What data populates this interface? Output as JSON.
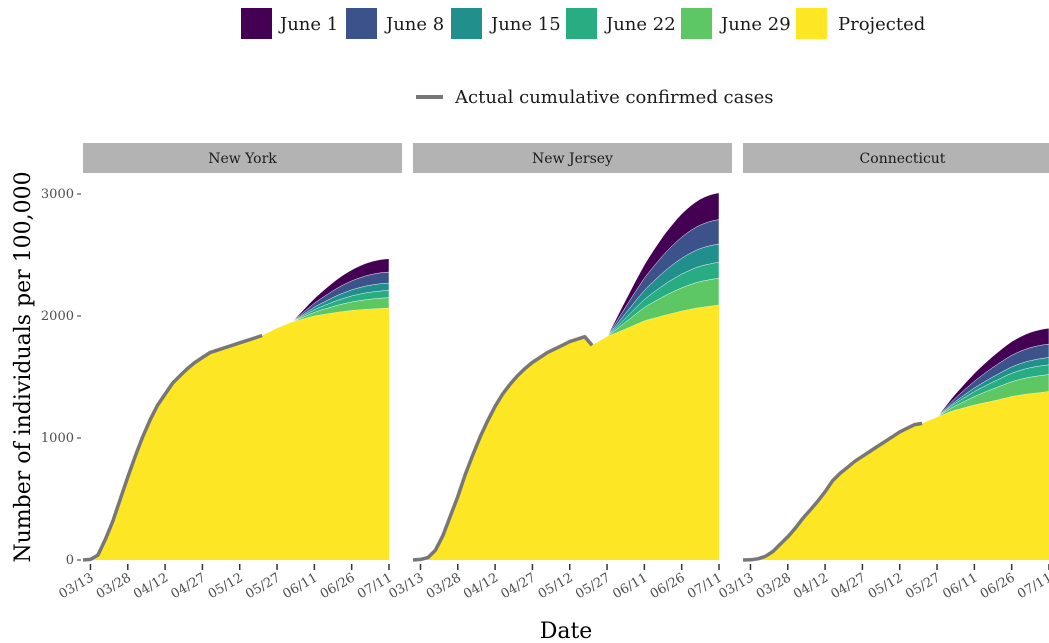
{
  "chart_data": {
    "type": "area",
    "xlabel": "Date",
    "ylabel": "Number of individuals per 100,000",
    "ylim": [
      0,
      3000
    ],
    "yticks": [
      0,
      1000,
      2000,
      3000
    ],
    "ytick_labels": [
      "0",
      "1000",
      "2000",
      "3000"
    ],
    "xlim_days": [
      -3,
      120
    ],
    "xticks": [
      "03/13",
      "03/28",
      "04/12",
      "04/27",
      "05/12",
      "05/27",
      "06/11",
      "06/26",
      "07/11"
    ],
    "legend_position": "top",
    "fill_legend": [
      {
        "name": "June 1",
        "color": "#440154"
      },
      {
        "name": "June 8",
        "color": "#3b528b"
      },
      {
        "name": "June 15",
        "color": "#21908c"
      },
      {
        "name": "June 22",
        "color": "#27ad81"
      },
      {
        "name": "June 29",
        "color": "#5dc863"
      },
      {
        "name": "Projected",
        "color": "#fde725"
      }
    ],
    "line_legend": {
      "name": "Actual cumulative confirmed cases",
      "color": "#777777"
    },
    "panels": [
      {
        "title": "New York",
        "actual": {
          "dates": [
            "03/10",
            "03/13",
            "03/16",
            "03/19",
            "03/22",
            "03/25",
            "03/28",
            "03/31",
            "04/03",
            "04/06",
            "04/09",
            "04/12",
            "04/15",
            "04/18",
            "04/21",
            "04/24",
            "04/27",
            "04/30",
            "05/03",
            "05/06",
            "05/09",
            "05/12",
            "05/15",
            "05/18",
            "05/21"
          ],
          "values": [
            0,
            5,
            40,
            170,
            320,
            500,
            680,
            850,
            1010,
            1150,
            1270,
            1360,
            1450,
            1510,
            1570,
            1620,
            1660,
            1700,
            1720,
            1740,
            1760,
            1780,
            1800,
            1820,
            1840
          ]
        },
        "projected_base": {
          "dates": [
            "05/21",
            "05/27",
            "06/02",
            "06/11",
            "06/20",
            "06/26",
            "07/02",
            "07/11"
          ],
          "values": [
            1840,
            1900,
            1950,
            2000,
            2030,
            2045,
            2055,
            2065
          ]
        },
        "scenario_end_values": {
          "date": "07/11",
          "June 29": 2150,
          "June 22": 2210,
          "June 15": 2270,
          "June 8": 2360,
          "June 1": 2470
        },
        "divergence_date": "06/02"
      },
      {
        "title": "New Jersey",
        "actual": {
          "dates": [
            "03/10",
            "03/13",
            "03/16",
            "03/19",
            "03/22",
            "03/25",
            "03/28",
            "03/31",
            "04/03",
            "04/06",
            "04/09",
            "04/12",
            "04/15",
            "04/18",
            "04/21",
            "04/24",
            "04/27",
            "04/30",
            "05/03",
            "05/06",
            "05/09",
            "05/12",
            "05/15",
            "05/18",
            "05/21"
          ],
          "values": [
            0,
            5,
            20,
            80,
            200,
            360,
            520,
            700,
            860,
            1010,
            1140,
            1260,
            1360,
            1440,
            1510,
            1570,
            1620,
            1660,
            1700,
            1730,
            1760,
            1790,
            1810,
            1830,
            1760
          ]
        },
        "projected_base": {
          "dates": [
            "05/21",
            "05/27",
            "06/02",
            "06/11",
            "06/20",
            "06/26",
            "07/02",
            "07/11"
          ],
          "values": [
            1760,
            1830,
            1880,
            1960,
            2010,
            2040,
            2065,
            2090
          ]
        },
        "scenario_end_values": {
          "date": "07/11",
          "June 29": 2310,
          "June 22": 2440,
          "June 15": 2590,
          "June 8": 2790,
          "June 1": 3010
        },
        "divergence_date": "05/27"
      },
      {
        "title": "Connecticut",
        "actual": {
          "dates": [
            "03/10",
            "03/13",
            "03/16",
            "03/19",
            "03/22",
            "03/25",
            "03/28",
            "03/31",
            "04/03",
            "04/06",
            "04/09",
            "04/12",
            "04/15",
            "04/18",
            "04/21",
            "04/24",
            "04/27",
            "04/30",
            "05/03",
            "05/06",
            "05/09",
            "05/12",
            "05/15",
            "05/18",
            "05/21"
          ],
          "values": [
            0,
            2,
            10,
            30,
            70,
            130,
            190,
            260,
            340,
            410,
            480,
            560,
            650,
            710,
            760,
            810,
            850,
            890,
            930,
            970,
            1010,
            1050,
            1080,
            1110,
            1120
          ]
        },
        "projected_base": {
          "dates": [
            "05/21",
            "05/27",
            "06/02",
            "06/11",
            "06/20",
            "06/26",
            "07/02",
            "07/11"
          ],
          "values": [
            1120,
            1170,
            1220,
            1270,
            1310,
            1340,
            1360,
            1380
          ]
        },
        "scenario_end_values": {
          "date": "07/11",
          "June 29": 1520,
          "June 22": 1600,
          "June 15": 1660,
          "June 8": 1770,
          "June 1": 1900
        },
        "divergence_date": "05/27"
      }
    ]
  }
}
